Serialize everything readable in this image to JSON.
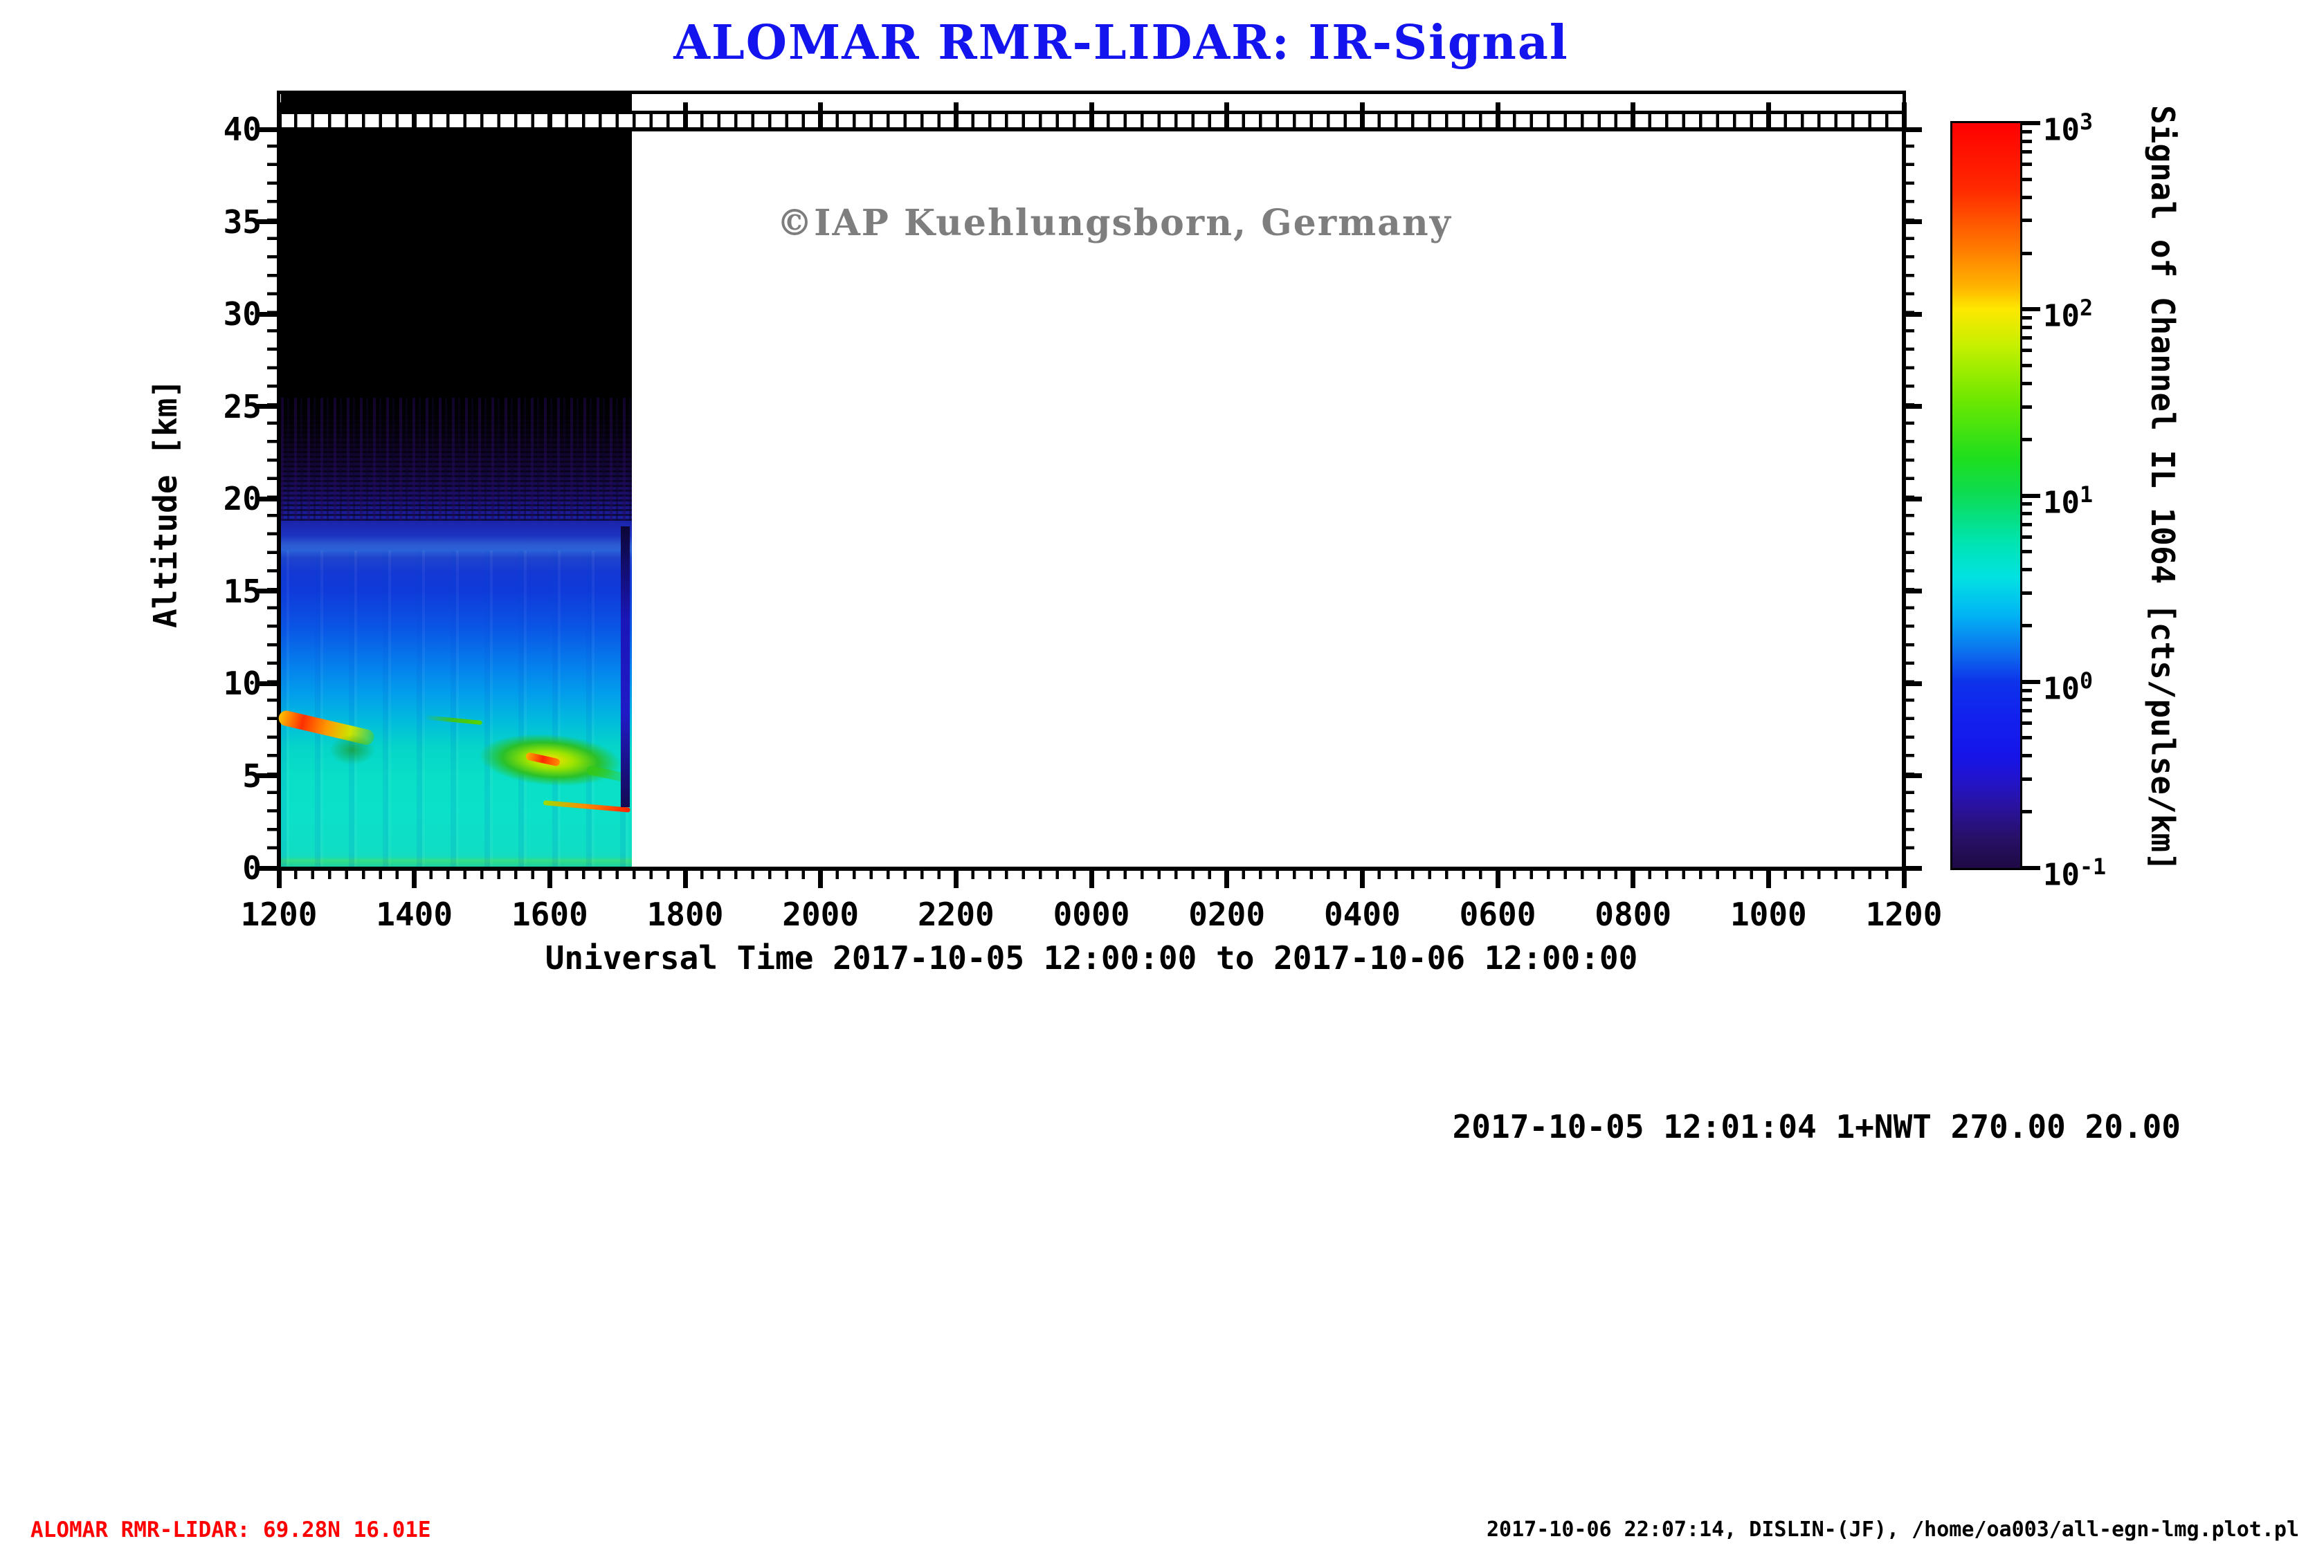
{
  "title": "ALOMAR RMR-LIDAR: IR-Signal",
  "watermark": "©IAP Kuehlungsborn, Germany",
  "annotation_line": "2017-10-05 12:01:04 1+NWT 270.00 20.00",
  "footer": {
    "station": "ALOMAR RMR-LIDAR: 69.28N 16.01E",
    "generated": "2017-10-06 22:07:14, DISLIN-(JF), /home/oa003/all-egn-lmg.plot.pl"
  },
  "chart_data": {
    "type": "heatmap",
    "title": "ALOMAR RMR-LIDAR: IR-Signal",
    "xlabel": "Universal Time 2017-10-05 12:00:00 to 2017-10-06 12:00:00",
    "ylabel": "Altitude [km]",
    "x_ticks": [
      "1200",
      "1400",
      "1600",
      "1800",
      "2000",
      "2200",
      "0000",
      "0200",
      "0400",
      "0600",
      "0800",
      "1000",
      "1200"
    ],
    "x_major_interval_h": 2,
    "x_minor_interval_min": 15,
    "y_ticks": [
      40,
      35,
      30,
      25,
      20,
      15,
      10,
      5,
      0
    ],
    "y_minor_interval_km": 1,
    "ylim": [
      0,
      40
    ],
    "grid": false,
    "colorbar": {
      "label": "Signal of Channel IL 1064 [cts/pulse/km]",
      "scale": "log",
      "min": 0.1,
      "max": 1000,
      "tick_exponents": [
        "3",
        "2",
        "1",
        "0",
        "-1"
      ],
      "gradient": [
        [
          0,
          "#ff0000"
        ],
        [
          9,
          "#ff2a00"
        ],
        [
          17,
          "#ff7c00"
        ],
        [
          22,
          "#ffb400"
        ],
        [
          25,
          "#fde800"
        ],
        [
          30,
          "#c4f000"
        ],
        [
          37,
          "#6fe800"
        ],
        [
          45,
          "#1ede1e"
        ],
        [
          50,
          "#0cdc56"
        ],
        [
          56,
          "#00e4ae"
        ],
        [
          61,
          "#02e2e2"
        ],
        [
          66,
          "#01b4f4"
        ],
        [
          71,
          "#0d70ee"
        ],
        [
          75,
          "#0d33ea"
        ],
        [
          80,
          "#1220ee"
        ],
        [
          85,
          "#1614e8"
        ],
        [
          88,
          "#2214cd"
        ],
        [
          92,
          "#2a129c"
        ],
        [
          96,
          "#271066"
        ],
        [
          100,
          "#1e0a44"
        ]
      ]
    },
    "data_coverage": {
      "start_ut": "2017-10-05 12:00",
      "end_ut": "2017-10-05 ~17:11",
      "duration_h": 5.18,
      "note": "signal recorded only during first ~5.2 h of the 24 h window; remainder of panel is empty"
    },
    "profile_bands": [
      {
        "alt_km": [
          0,
          8
        ],
        "approx_signal_cts": "2-5 (cyan), clouds up to 100-1000"
      },
      {
        "alt_km": [
          8,
          12
        ],
        "approx_signal_cts": "1-2 (azure/light blue)"
      },
      {
        "alt_km": [
          12,
          17
        ],
        "approx_signal_cts": "0.5-1 (blue), brighter layer near 17.5 km"
      },
      {
        "alt_km": [
          17,
          22
        ],
        "approx_signal_cts": "0.1-0.4 (dark blue/violet, noisy)"
      },
      {
        "alt_km": [
          22,
          40
        ],
        "approx_signal_cts": "<0.1 (black, below color scale)"
      }
    ],
    "profile_gradient": [
      [
        0,
        "#000000"
      ],
      [
        36.25,
        "#000000"
      ],
      [
        40,
        "#0d041f"
      ],
      [
        43.75,
        "#170741"
      ],
      [
        47.5,
        "#1d0c63"
      ],
      [
        50,
        "#1e1284"
      ],
      [
        52.5,
        "#1b1fa4"
      ],
      [
        55,
        "#1c33c0"
      ],
      [
        56.25,
        "#2d5bd2"
      ],
      [
        57,
        "#2b62d8"
      ],
      [
        58,
        "#1f43cd"
      ],
      [
        60,
        "#1338d4"
      ],
      [
        62.5,
        "#0f3ada"
      ],
      [
        67.5,
        "#0a55e5"
      ],
      [
        72.5,
        "#057eec"
      ],
      [
        76.25,
        "#029cec"
      ],
      [
        80,
        "#01bade"
      ],
      [
        83.75,
        "#05d5c9"
      ],
      [
        87.5,
        "#09dfc7"
      ],
      [
        92.5,
        "#0be0c9"
      ],
      [
        97.5,
        "#0fdec5"
      ],
      [
        98.6,
        "#13dcc0"
      ],
      [
        99.2,
        "#33de86"
      ],
      [
        100,
        "#17cfa6"
      ]
    ],
    "features": [
      {
        "name": "cirrus-streak",
        "kind": "streak",
        "time_h": [
          0,
          1.4
        ],
        "alt_km": [
          8.2,
          7.0
        ],
        "thickness_px": 22,
        "colors": [
          "#ffc400",
          "#ff3000",
          "#ff9800",
          "#cde400",
          "rgba(70,204,20,0.45)"
        ]
      },
      {
        "name": "cirrus-wisp",
        "kind": "blob",
        "time_h": [
          0.75,
          1.45
        ],
        "alt_km": [
          6.9,
          5.9
        ],
        "colors": [
          "rgba(30,150,30,0.70)",
          "rgba(30,150,30,0)"
        ]
      },
      {
        "name": "thin-cloud-line",
        "kind": "streak",
        "time_h": [
          2.15,
          3.0
        ],
        "alt_km": [
          8.15,
          7.85
        ],
        "thickness_px": 6,
        "colors": [
          "rgba(62,196,30,0)",
          "#3ec41e",
          "#5ad400"
        ]
      },
      {
        "name": "cloud-band",
        "kind": "blob",
        "time_h": [
          2.95,
          5.15
        ],
        "alt_km": [
          6.9,
          4.8
        ],
        "rot_deg": 4,
        "colors": [
          "#ffe000",
          "#9ce400",
          "rgba(45,190,28,0.92)",
          "rgba(45,190,28,0)"
        ]
      },
      {
        "name": "cloud-red-core",
        "kind": "streak",
        "time_h": [
          3.65,
          4.15
        ],
        "alt_km": [
          6.1,
          5.7
        ],
        "thickness_px": 11,
        "colors": [
          "#ffb000",
          "#ff2a00",
          "#ff9000"
        ]
      },
      {
        "name": "cloud-tail",
        "kind": "streak",
        "time_h": [
          4.55,
          5.18
        ],
        "alt_km": [
          5.35,
          4.85
        ],
        "thickness_px": 13,
        "colors": [
          "#35c818",
          "rgba(53,200,24,0.15)"
        ]
      },
      {
        "name": "low-level-line",
        "kind": "streak",
        "time_h": [
          3.9,
          5.18
        ],
        "alt_km": [
          3.55,
          3.15
        ],
        "thickness_px": 7,
        "colors": [
          "#9ade00",
          "#ff8800",
          "#ff2000"
        ]
      },
      {
        "name": "end-gap-strip",
        "kind": "strip",
        "time_h": [
          5.05,
          5.18
        ],
        "alt_km": [
          18.5,
          3.3
        ],
        "colors": [
          "#0c0636",
          "#1a16b8",
          "#201ac6",
          "#140a54"
        ]
      }
    ]
  }
}
